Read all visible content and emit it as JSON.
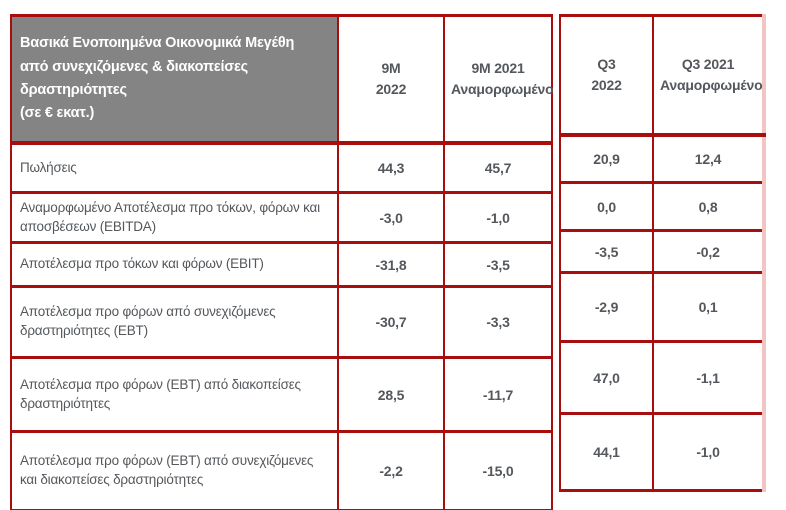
{
  "table": {
    "title": "Βασικά Ενοποιημένα Οικονομικά Μεγέθη\nαπό συνεχιζόμενες & διακοπείσες\nδραστηριότητες\n(σε € εκατ.)",
    "columns": [
      "9M\n2022",
      "9M 2021\nΑναμορφωμένο",
      "Q3\n2022",
      "Q3 2021\nΑναμορφωμένο"
    ],
    "rows": [
      {
        "label": "Πωλήσεις",
        "values": [
          "44,3",
          "45,7",
          "20,9",
          "12,4"
        ]
      },
      {
        "label": "Αναμορφωμένο Αποτέλεσμα προ τόκων, φόρων και αποσβέσεων (EBITDA)",
        "values": [
          "-3,0",
          "-1,0",
          "0,0",
          "0,8"
        ]
      },
      {
        "label": "Αποτέλεσμα προ τόκων και φόρων (EBIT)",
        "values": [
          "-31,8",
          "-3,5",
          "-3,5",
          "-0,2"
        ]
      },
      {
        "label": "Αποτέλεσμα προ φόρων από συνεχιζόμενες δραστηριότητες (EBT)",
        "values": [
          "-30,7",
          "-3,3",
          "-2,9",
          "0,1"
        ]
      },
      {
        "label": "Αποτέλεσμα προ φόρων (EBT) από διακοπείσες δραστηριότητες",
        "values": [
          "28,5",
          "-11,7",
          "47,0",
          "-1,1"
        ]
      },
      {
        "label": "Αποτέλεσμα προ φόρων (EBT) από συνεχιζόμενες και διακοπείσες δραστηριότητες",
        "values": [
          "-2,2",
          "-15,0",
          "44,1",
          "-1,0"
        ]
      }
    ],
    "colors": {
      "border": "#a80e0e",
      "border_light": "#f2c4c4",
      "header_background": "#848484",
      "header_text": "#ffffff",
      "body_text": "#54585c"
    }
  },
  "chart_data": {
    "type": "table",
    "title": "Βασικά Ενοποιημένα Οικονομικά Μεγέθη από συνεχιζόμενες & διακοπείσες δραστηριότητες (σε € εκατ.)",
    "columns": [
      "9M 2022",
      "9M 2021 Αναμορφωμένο",
      "Q3 2022",
      "Q3 2021 Αναμορφωμένο"
    ],
    "rows": [
      {
        "label": "Πωλήσεις",
        "values": [
          44.3,
          45.7,
          20.9,
          12.4
        ]
      },
      {
        "label": "Αναμορφωμένο Αποτέλεσμα προ τόκων, φόρων και αποσβέσεων (EBITDA)",
        "values": [
          -3.0,
          -1.0,
          0.0,
          0.8
        ]
      },
      {
        "label": "Αποτέλεσμα προ τόκων και φόρων (EBIT)",
        "values": [
          -31.8,
          -3.5,
          -3.5,
          -0.2
        ]
      },
      {
        "label": "Αποτέλεσμα προ φόρων από συνεχιζόμενες δραστηριότητες (EBT)",
        "values": [
          -30.7,
          -3.3,
          -2.9,
          0.1
        ]
      },
      {
        "label": "Αποτέλεσμα προ φόρων (EBT) από διακοπείσες δραστηριότητες",
        "values": [
          28.5,
          -11.7,
          47.0,
          -1.1
        ]
      },
      {
        "label": "Αποτέλεσμα προ φόρων (EBT) από συνεχιζόμενες και διακοπείσες δραστηριότητες",
        "values": [
          -2.2,
          -15.0,
          44.1,
          -1.0
        ]
      }
    ]
  }
}
